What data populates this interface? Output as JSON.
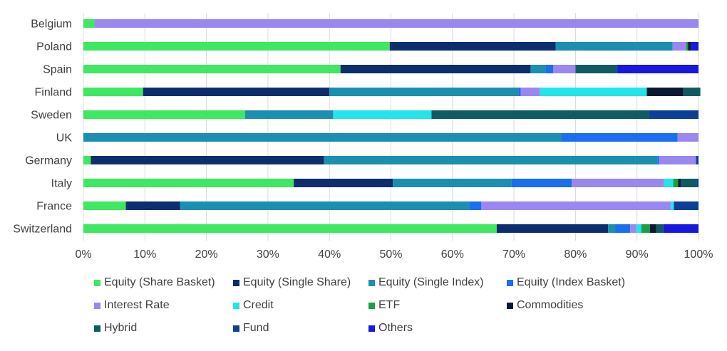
{
  "chart_data": {
    "type": "bar",
    "orientation": "horizontal",
    "stacked": "percent",
    "categories": [
      "Belgium",
      "Poland",
      "Spain",
      "Finland",
      "Sweden",
      "UK",
      "Germany",
      "Italy",
      "France",
      "Switzerland"
    ],
    "xlim": [
      0,
      100
    ],
    "xticks": [
      "0%",
      "10%",
      "20%",
      "30%",
      "40%",
      "50%",
      "60%",
      "70%",
      "80%",
      "90%",
      "100%"
    ],
    "grid": "vertical",
    "legend_position": "bottom",
    "series": [
      {
        "name": "Equity (Share Basket)",
        "color": "#3ee860",
        "values": [
          1.8,
          49.8,
          41.8,
          9.7,
          26.3,
          0,
          1.2,
          34.2,
          6.9,
          67.2
        ]
      },
      {
        "name": "Equity (Single Share)",
        "color": "#0d2e6e",
        "values": [
          0,
          27.0,
          30.9,
          30.3,
          0,
          0,
          37.9,
          16.1,
          8.8,
          18.1
        ]
      },
      {
        "name": "Equity (Single Index)",
        "color": "#1a8fb0",
        "values": [
          0,
          19.0,
          2.4,
          30.7,
          14.3,
          77.7,
          54.2,
          19.3,
          47.1,
          1.2
        ]
      },
      {
        "name": "Equity (Index Basket)",
        "color": "#1a6ef0",
        "values": [
          0,
          0,
          1.3,
          0.4,
          0,
          18.9,
          0.3,
          9.8,
          1.9,
          2.4
        ]
      },
      {
        "name": "Interest Rate",
        "color": "#9b87f0",
        "values": [
          98.2,
          2.2,
          3.6,
          3.1,
          0,
          3.4,
          6.0,
          15.0,
          30.8,
          1.0
        ]
      },
      {
        "name": "Credit",
        "color": "#22e4ea",
        "values": [
          0,
          0,
          0,
          17.4,
          16.0,
          0,
          0,
          1.5,
          0.5,
          0.8
        ]
      },
      {
        "name": "ETF",
        "color": "#1aa040",
        "values": [
          0,
          0.3,
          0,
          0,
          0,
          0,
          0,
          0.8,
          0,
          1.4
        ]
      },
      {
        "name": "Commodities",
        "color": "#0a1a33",
        "values": [
          0,
          0.5,
          0,
          5.9,
          0,
          0,
          0,
          0.4,
          0,
          1.0
        ]
      },
      {
        "name": "Hybrid",
        "color": "#0e5c62",
        "values": [
          0,
          0,
          6.8,
          2.8,
          35.4,
          0,
          0,
          2.6,
          0,
          1.2
        ]
      },
      {
        "name": "Fund",
        "color": "#0e3f96",
        "values": [
          0,
          0,
          0,
          0,
          8.0,
          0,
          0.4,
          0.3,
          4.0,
          0
        ]
      },
      {
        "name": "Others",
        "color": "#1818e0",
        "values": [
          0,
          1.2,
          13.2,
          0,
          0,
          0,
          0,
          0,
          0,
          5.7
        ]
      }
    ]
  }
}
